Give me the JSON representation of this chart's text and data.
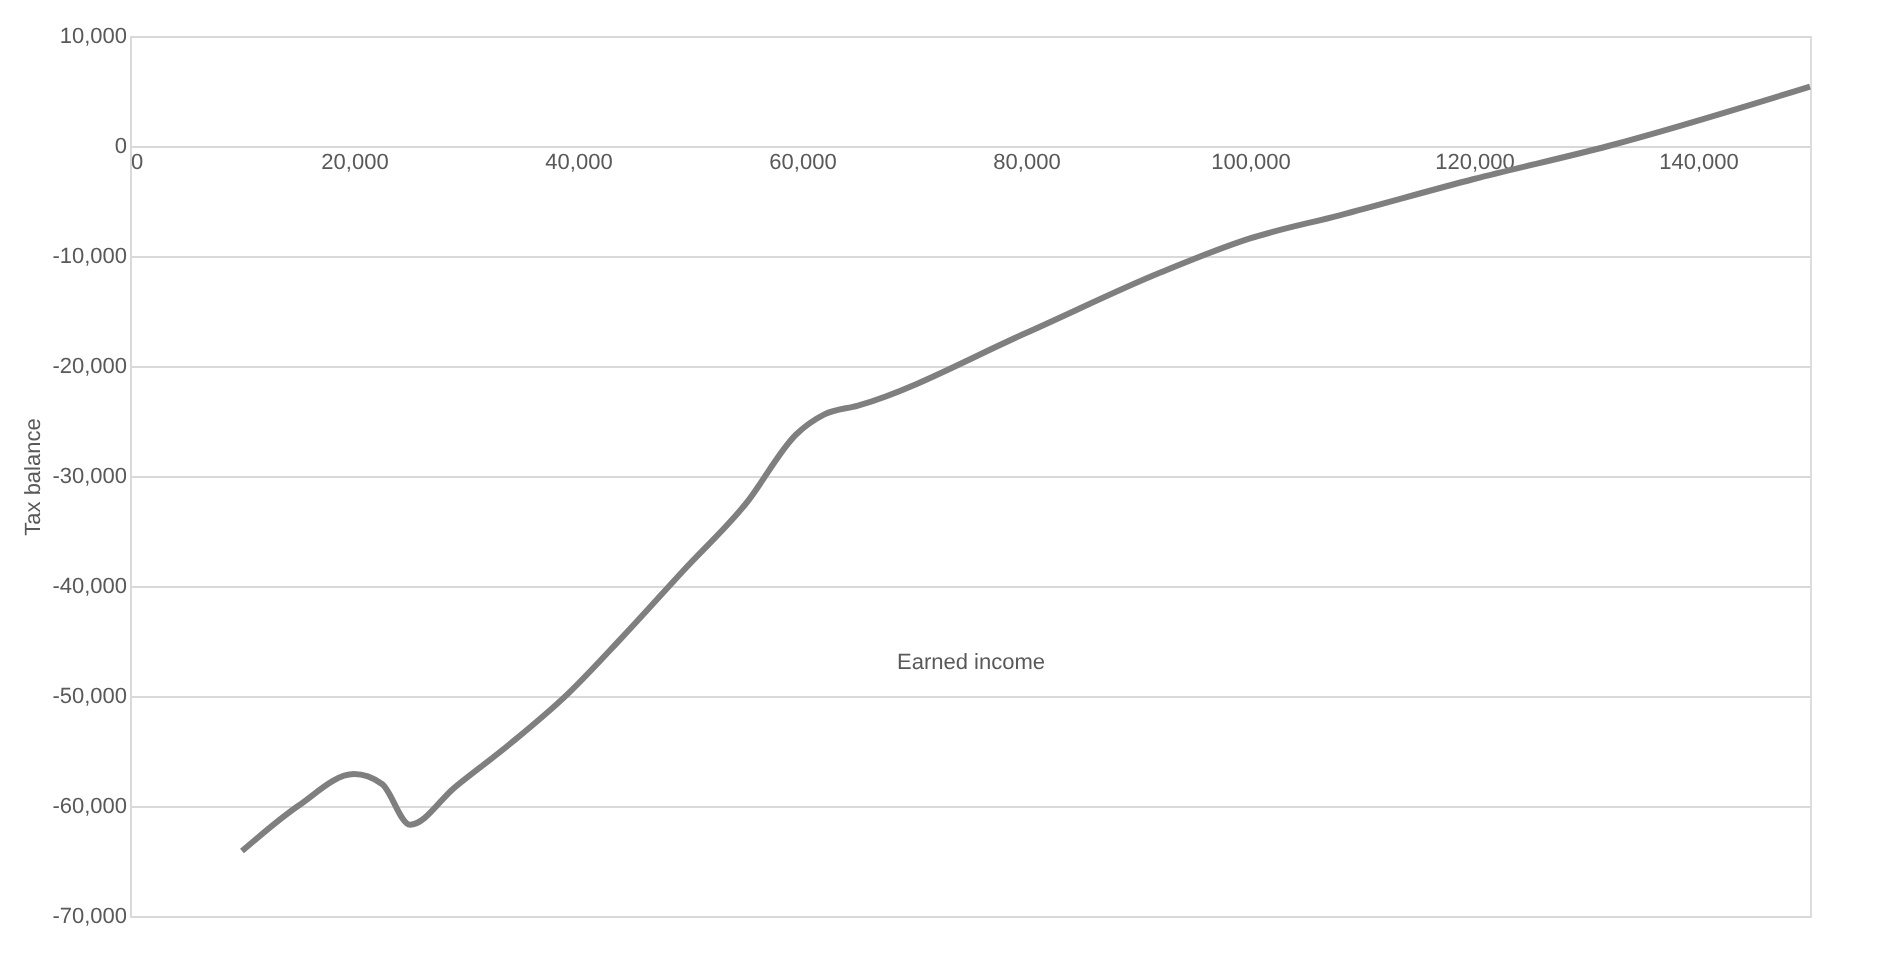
{
  "chart_data": {
    "type": "line",
    "xlabel": "Earned income",
    "ylabel": "Tax balance",
    "x": [
      10000,
      15000,
      20000,
      22500,
      25000,
      29000,
      34000,
      39000,
      44000,
      49500,
      55000,
      59500,
      62000,
      65000,
      80000,
      92000,
      100000,
      108000,
      120000,
      132000,
      150000
    ],
    "series": [
      {
        "color": "#7f7f7f",
        "values": [
          -64100,
          -60000,
          -57100,
          -58000,
          -61700,
          -58300,
          -54300,
          -49900,
          -44600,
          -38500,
          -32500,
          -26200,
          -24400,
          -23600,
          -17000,
          -11500,
          -8400,
          -6300,
          -3000,
          0,
          5400
        ]
      }
    ],
    "xlim": [
      0,
      150000
    ],
    "xticks": [
      0,
      {
        "value": 20000,
        "label": "20,000"
      },
      {
        "value": 40000,
        "label": "40,000"
      },
      {
        "value": 60000,
        "label": "60,000"
      },
      {
        "value": 80000,
        "label": "80,000"
      },
      {
        "value": 100000,
        "label": "100,000"
      },
      {
        "value": 120000,
        "label": "120,000"
      },
      {
        "value": 140000,
        "label": "140,000"
      }
    ],
    "ylim": [
      -70000,
      10000
    ],
    "yticks": [
      {
        "value": -70000,
        "label": "-70,000"
      },
      {
        "value": -60000,
        "label": "-60,000"
      },
      {
        "value": -50000,
        "label": "-50,000"
      },
      {
        "value": -40000,
        "label": "-40,000"
      },
      {
        "value": -30000,
        "label": "-30,000"
      },
      {
        "value": -20000,
        "label": "-20,000"
      },
      {
        "value": -10000,
        "label": "-10,000"
      },
      0,
      {
        "value": 10000,
        "label": "10,000"
      }
    ],
    "grid": "y",
    "legend": false,
    "marker": "none",
    "line_style": "solid"
  }
}
